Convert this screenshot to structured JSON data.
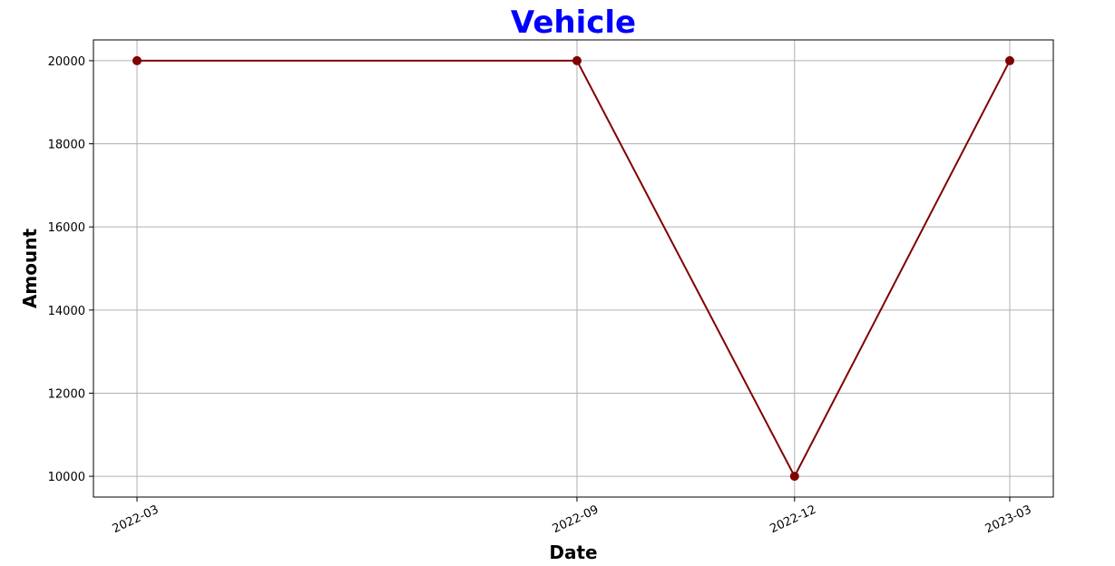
{
  "colors": {
    "title": "#0000ff",
    "line": "#800000",
    "marker": "#800000",
    "grid": "#b0b0b0",
    "axes": "#000000",
    "background": "#ffffff"
  },
  "chart_data": {
    "type": "line",
    "title": "Vehicle",
    "xlabel": "Date",
    "ylabel": "Amount",
    "x": [
      "2022-03",
      "2022-09",
      "2022-12",
      "2023-03"
    ],
    "x_tick_labels": [
      "2022-03",
      "2022-09",
      "2022-12",
      "2023-03"
    ],
    "y_ticks": [
      10000,
      12000,
      14000,
      16000,
      18000,
      20000
    ],
    "ylim": [
      9500,
      20500
    ],
    "grid": true,
    "legend": "none",
    "series": [
      {
        "values": [
          20000,
          20000,
          10000,
          20000
        ]
      }
    ]
  }
}
